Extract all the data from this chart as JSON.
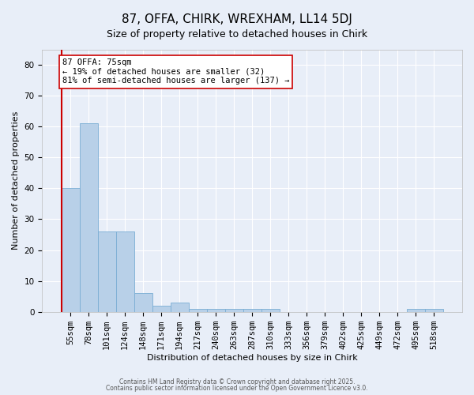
{
  "title1": "87, OFFA, CHIRK, WREXHAM, LL14 5DJ",
  "title2": "Size of property relative to detached houses in Chirk",
  "xlabel": "Distribution of detached houses by size in Chirk",
  "ylabel": "Number of detached properties",
  "categories": [
    "55sqm",
    "78sqm",
    "101sqm",
    "124sqm",
    "148sqm",
    "171sqm",
    "194sqm",
    "217sqm",
    "240sqm",
    "263sqm",
    "287sqm",
    "310sqm",
    "333sqm",
    "356sqm",
    "379sqm",
    "402sqm",
    "425sqm",
    "449sqm",
    "472sqm",
    "495sqm",
    "518sqm"
  ],
  "values": [
    40,
    61,
    26,
    26,
    6,
    2,
    3,
    1,
    1,
    1,
    1,
    1,
    0,
    0,
    0,
    0,
    0,
    0,
    0,
    1,
    1
  ],
  "bar_color": "#b8d0e8",
  "bar_edge_color": "#7aadd4",
  "vline_color": "#cc0000",
  "annotation_text": "87 OFFA: 75sqm\n← 19% of detached houses are smaller (32)\n81% of semi-detached houses are larger (137) →",
  "annotation_box_facecolor": "white",
  "annotation_box_edgecolor": "#cc0000",
  "ylim": [
    0,
    85
  ],
  "yticks": [
    0,
    10,
    20,
    30,
    40,
    50,
    60,
    70,
    80
  ],
  "background_color": "#e8eef8",
  "plot_bg_color": "#e8eef8",
  "grid_color": "white",
  "footer1": "Contains HM Land Registry data © Crown copyright and database right 2025.",
  "footer2": "Contains public sector information licensed under the Open Government Licence v3.0.",
  "title1_fontsize": 11,
  "title2_fontsize": 9,
  "xlabel_fontsize": 8,
  "ylabel_fontsize": 8,
  "tick_fontsize": 7.5,
  "annot_fontsize": 7.5,
  "footer_fontsize": 5.5
}
